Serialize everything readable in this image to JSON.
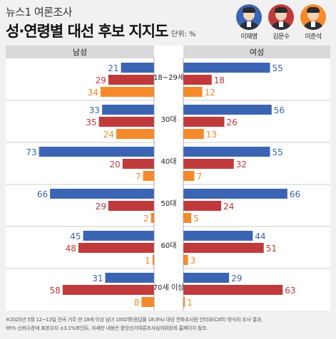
{
  "header": {
    "source": "뉴스1 여론조사",
    "title": "성·연령별 대선 후보 지지도",
    "unit": "단위: %"
  },
  "candidates": [
    {
      "name": "이재명",
      "color": "#3b64b3",
      "ring": "#3b64b3"
    },
    {
      "name": "김문수",
      "color": "#c0393b",
      "ring": "#c0393b"
    },
    {
      "name": "이준석",
      "color": "#f58a2c",
      "ring": "#f58a2c"
    }
  ],
  "chart_data": {
    "type": "bar",
    "orientation": "horizontal",
    "layout": "butterfly",
    "left_panel": "남성",
    "right_panel": "여성",
    "categories": [
      "18~29세",
      "30대",
      "40대",
      "50대",
      "60대",
      "70세 이상"
    ],
    "series": [
      {
        "name": "이재명",
        "color": "#3b64b3",
        "male": [
          21,
          33,
          73,
          66,
          45,
          31
        ],
        "female": [
          55,
          56,
          55,
          66,
          44,
          29
        ]
      },
      {
        "name": "김문수",
        "color": "#c0393b",
        "male": [
          29,
          35,
          20,
          29,
          48,
          58
        ],
        "female": [
          18,
          26,
          32,
          24,
          51,
          63
        ]
      },
      {
        "name": "이준석",
        "color": "#f58a2c",
        "male": [
          34,
          24,
          7,
          2,
          1,
          8
        ],
        "female": [
          12,
          13,
          7,
          5,
          3,
          1
        ]
      }
    ],
    "xlim": [
      0,
      80
    ]
  },
  "footer": {
    "line1": "※2025년 5월 12~13일 전국 거주 만 18세 이상 남녀 1002명(응답률 18.9%) 대상 전화조사원 인터뷰(CATI) 방식의 조사 결과,",
    "line2": "95% 신뢰수준에 표본오차 ±3.1%포인트, 자세한 내용은 중앙선거여론조사심의위원회 홈페이지 참조."
  }
}
